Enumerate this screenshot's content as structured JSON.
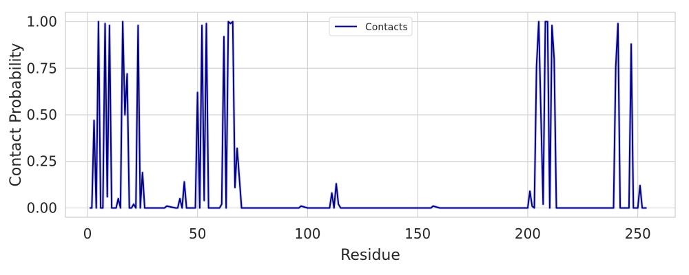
{
  "chart_data": {
    "type": "line",
    "title": "",
    "xlabel": "Residue",
    "ylabel": "Contact Probability",
    "xlim": [
      -10,
      267
    ],
    "ylim": [
      -0.05,
      1.05
    ],
    "xticks": [
      0,
      50,
      100,
      150,
      200,
      250
    ],
    "yticks": [
      0.0,
      0.25,
      0.5,
      0.75,
      1.0
    ],
    "xtick_labels": [
      "0",
      "50",
      "100",
      "150",
      "200",
      "250"
    ],
    "ytick_labels": [
      "0.00",
      "0.25",
      "0.50",
      "0.75",
      "1.00"
    ],
    "grid": true,
    "legend_position": "top-center",
    "series": [
      {
        "name": "Contacts",
        "color": "#00008b",
        "x": [
          1,
          2,
          3,
          4,
          5,
          6,
          7,
          8,
          9,
          10,
          11,
          12,
          13,
          14,
          15,
          16,
          17,
          18,
          19,
          20,
          21,
          22,
          23,
          24,
          25,
          26,
          27,
          30,
          35,
          36,
          40,
          41,
          42,
          43,
          44,
          45,
          48,
          49,
          50,
          51,
          52,
          53,
          54,
          55,
          58,
          59,
          60,
          61,
          62,
          63,
          64,
          65,
          66,
          67,
          68,
          70,
          80,
          90,
          95,
          96,
          97,
          100,
          109,
          110,
          111,
          112,
          113,
          114,
          115,
          120,
          130,
          140,
          150,
          155,
          156,
          157,
          160,
          161,
          170,
          180,
          190,
          198,
          199,
          200,
          201,
          202,
          203,
          204,
          205,
          206,
          207,
          208,
          209,
          210,
          211,
          212,
          213,
          215,
          220,
          230,
          236,
          237,
          238,
          239,
          240,
          241,
          242,
          245,
          246,
          247,
          248,
          249,
          250,
          251,
          252,
          253,
          254
        ],
        "values": [
          0.0,
          0.0,
          0.47,
          0.0,
          1.0,
          0.0,
          0.0,
          0.99,
          0.06,
          0.98,
          0.0,
          0.0,
          0.0,
          0.05,
          0.0,
          1.0,
          0.5,
          0.72,
          0.0,
          0.0,
          0.02,
          0.0,
          0.98,
          0.0,
          0.19,
          0.0,
          0.0,
          0.0,
          0.0,
          0.01,
          0.0,
          0.0,
          0.05,
          0.0,
          0.14,
          0.0,
          0.0,
          0.0,
          0.62,
          0.0,
          0.98,
          0.04,
          0.99,
          0.0,
          0.0,
          0.0,
          0.0,
          0.02,
          0.92,
          0.0,
          1.0,
          0.99,
          1.0,
          0.11,
          0.32,
          0.0,
          0.0,
          0.0,
          0.0,
          0.0,
          0.01,
          0.0,
          0.0,
          0.0,
          0.08,
          0.0,
          0.13,
          0.02,
          0.0,
          0.0,
          0.0,
          0.0,
          0.0,
          0.0,
          0.0,
          0.01,
          0.0,
          0.0,
          0.0,
          0.0,
          0.0,
          0.0,
          0.0,
          0.0,
          0.09,
          0.01,
          0.0,
          0.76,
          1.0,
          0.5,
          0.02,
          1.0,
          1.0,
          0.0,
          0.98,
          0.8,
          0.0,
          0.0,
          0.0,
          0.0,
          0.0,
          0.0,
          0.0,
          0.0,
          0.76,
          0.99,
          0.0,
          0.0,
          0.0,
          0.88,
          0.0,
          0.0,
          0.0,
          0.12,
          0.0,
          0.0,
          0.0
        ]
      }
    ]
  }
}
